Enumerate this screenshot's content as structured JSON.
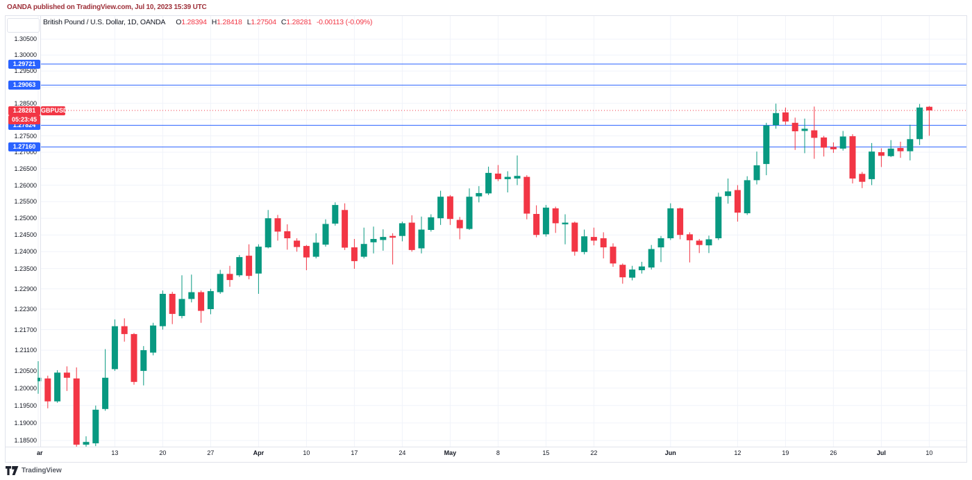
{
  "banner": {
    "text": "OANDA published on TradingView.com, Jul 10, 2023 15:39 UTC"
  },
  "legend": {
    "symbol_title": "British Pound / U.S. Dollar, 1D, OANDA",
    "ohlc": [
      {
        "label": "O",
        "value": "1.28394"
      },
      {
        "label": "H",
        "value": "1.28418"
      },
      {
        "label": "L",
        "value": "1.27504"
      },
      {
        "label": "C",
        "value": "1.28281"
      }
    ],
    "change": "-0.00113 (-0.09%)"
  },
  "footer": {
    "brand": "TradingView"
  },
  "colors": {
    "up": "#089981",
    "down": "#f23645",
    "level_blue": "#2962ff",
    "accent_red": "#f23645",
    "banner_red": "#9e3039",
    "text": "#131722",
    "grid": "#f0f3fa",
    "border": "#e0e3eb"
  },
  "chart_data": {
    "type": "candlestick",
    "symbol": "GBPUSD",
    "title": "British Pound / U.S. Dollar, 1D, OANDA",
    "timeframe": "1D",
    "y_axis": {
      "scale": "log",
      "ylim": [
        1.183,
        1.305
      ],
      "ticks": [
        "1.30500",
        "1.30000",
        "1.29500",
        "1.28500",
        "1.27500",
        "1.27000",
        "1.26500",
        "1.26000",
        "1.25500",
        "1.25000",
        "1.24500",
        "1.24000",
        "1.23500",
        "1.22900",
        "1.22300",
        "1.21700",
        "1.21100",
        "1.20500",
        "1.20000",
        "1.19500",
        "1.19000",
        "1.18500"
      ],
      "grid_only": [
        "1.29000",
        "1.28000"
      ]
    },
    "x_axis": {
      "labels": [
        {
          "text": "ar",
          "index": 0,
          "month": true
        },
        {
          "text": "13",
          "index": 8
        },
        {
          "text": "20",
          "index": 13
        },
        {
          "text": "27",
          "index": 18
        },
        {
          "text": "Apr",
          "index": 23,
          "month": true
        },
        {
          "text": "10",
          "index": 28
        },
        {
          "text": "17",
          "index": 33
        },
        {
          "text": "24",
          "index": 38
        },
        {
          "text": "May",
          "index": 43,
          "month": true
        },
        {
          "text": "8",
          "index": 48
        },
        {
          "text": "15",
          "index": 53
        },
        {
          "text": "22",
          "index": 58
        },
        {
          "text": "Jun",
          "index": 66,
          "month": true
        },
        {
          "text": "12",
          "index": 73
        },
        {
          "text": "19",
          "index": 78
        },
        {
          "text": "26",
          "index": 83
        },
        {
          "text": "Jul",
          "index": 88,
          "month": true
        },
        {
          "text": "10",
          "index": 93
        }
      ]
    },
    "levels": [
      {
        "price": 1.29721,
        "label": "1.29721"
      },
      {
        "price": 1.29063,
        "label": "1.29063"
      },
      {
        "price": 1.27824,
        "label": "1.27824"
      },
      {
        "price": 1.2716,
        "label": "1.27160"
      }
    ],
    "last": {
      "price": 1.28281,
      "label": "1.28281",
      "tag": "GBPUSD",
      "countdown": "05:23:45"
    },
    "dates": [
      "Mar 1",
      "Mar 2",
      "Mar 3",
      "Mar 6",
      "Mar 7",
      "Mar 8",
      "Mar 9",
      "Mar 10",
      "Mar 13",
      "Mar 14",
      "Mar 15",
      "Mar 16",
      "Mar 17",
      "Mar 20",
      "Mar 21",
      "Mar 22",
      "Mar 23",
      "Mar 24",
      "Mar 27",
      "Mar 28",
      "Mar 29",
      "Mar 30",
      "Mar 31",
      "Apr 3",
      "Apr 4",
      "Apr 5",
      "Apr 6",
      "Apr 7",
      "Apr 10",
      "Apr 11",
      "Apr 12",
      "Apr 13",
      "Apr 14",
      "Apr 17",
      "Apr 18",
      "Apr 19",
      "Apr 20",
      "Apr 21",
      "Apr 24",
      "Apr 25",
      "Apr 26",
      "Apr 27",
      "Apr 28",
      "May 1",
      "May 2",
      "May 3",
      "May 4",
      "May 5",
      "May 8",
      "May 9",
      "May 10",
      "May 11",
      "May 12",
      "May 15",
      "May 16",
      "May 17",
      "May 18",
      "May 19",
      "May 22",
      "May 23",
      "May 24",
      "May 25",
      "May 26",
      "May 29",
      "May 30",
      "May 31",
      "Jun 1",
      "Jun 2",
      "Jun 5",
      "Jun 6",
      "Jun 7",
      "Jun 8",
      "Jun 9",
      "Jun 12",
      "Jun 13",
      "Jun 14",
      "Jun 15",
      "Jun 16",
      "Jun 19",
      "Jun 20",
      "Jun 21",
      "Jun 22",
      "Jun 23",
      "Jun 26",
      "Jun 27",
      "Jun 28",
      "Jun 29",
      "Jun 30",
      "Jul 3",
      "Jul 4",
      "Jul 5",
      "Jul 6",
      "Jul 7",
      "Jul 10"
    ],
    "ohlc": [
      [
        1.202,
        1.2078,
        1.1984,
        1.203
      ],
      [
        1.2028,
        1.2036,
        1.1942,
        1.1962
      ],
      [
        1.1962,
        1.2052,
        1.1958,
        1.2045
      ],
      [
        1.2045,
        1.2063,
        1.1992,
        1.203
      ],
      [
        1.2028,
        1.206,
        1.183,
        1.1838
      ],
      [
        1.1838,
        1.1862,
        1.1832,
        1.1846
      ],
      [
        1.1842,
        1.195,
        1.1834,
        1.1938
      ],
      [
        1.194,
        1.2113,
        1.1935,
        1.203
      ],
      [
        1.2055,
        1.22,
        1.205,
        1.218
      ],
      [
        1.218,
        1.2203,
        1.2135,
        1.2157
      ],
      [
        1.2157,
        1.216,
        1.201,
        1.2018
      ],
      [
        1.205,
        1.2122,
        1.2008,
        1.211
      ],
      [
        1.2103,
        1.219,
        1.2095,
        1.2182
      ],
      [
        1.218,
        1.2285,
        1.217,
        1.2275
      ],
      [
        1.2275,
        1.2281,
        1.2186,
        1.2216
      ],
      [
        1.221,
        1.233,
        1.2203,
        1.226
      ],
      [
        1.226,
        1.2332,
        1.225,
        1.228
      ],
      [
        1.228,
        1.2285,
        1.219,
        1.2225
      ],
      [
        1.223,
        1.229,
        1.2215,
        1.2283
      ],
      [
        1.228,
        1.2346,
        1.2275,
        1.2334
      ],
      [
        1.2334,
        1.2358,
        1.2296,
        1.2316
      ],
      [
        1.233,
        1.239,
        1.2325,
        1.2384
      ],
      [
        1.2388,
        1.2422,
        1.2318,
        1.2328
      ],
      [
        1.2335,
        1.2422,
        1.2275,
        1.2415
      ],
      [
        1.2413,
        1.2525,
        1.241,
        1.25
      ],
      [
        1.25,
        1.251,
        1.2433,
        1.246
      ],
      [
        1.2461,
        1.2482,
        1.2406,
        1.244
      ],
      [
        1.2433,
        1.244,
        1.24,
        1.2414
      ],
      [
        1.2417,
        1.242,
        1.2345,
        1.2383
      ],
      [
        1.2385,
        1.2455,
        1.238,
        1.2427
      ],
      [
        1.2421,
        1.2497,
        1.2415,
        1.2483
      ],
      [
        1.2484,
        1.2548,
        1.2478,
        1.254
      ],
      [
        1.2525,
        1.2545,
        1.2405,
        1.2412
      ],
      [
        1.2413,
        1.2438,
        1.2349,
        1.2372
      ],
      [
        1.2385,
        1.2472,
        1.238,
        1.2423
      ],
      [
        1.2428,
        1.2475,
        1.2395,
        1.2438
      ],
      [
        1.2435,
        1.2467,
        1.2403,
        1.2444
      ],
      [
        1.2447,
        1.2455,
        1.2362,
        1.2442
      ],
      [
        1.2447,
        1.249,
        1.2431,
        1.2485
      ],
      [
        1.2487,
        1.2509,
        1.24,
        1.2405
      ],
      [
        1.241,
        1.2505,
        1.2395,
        1.2466
      ],
      [
        1.2465,
        1.2512,
        1.246,
        1.2503
      ],
      [
        1.25,
        1.2583,
        1.248,
        1.2565
      ],
      [
        1.2566,
        1.257,
        1.248,
        1.2498
      ],
      [
        1.2495,
        1.2504,
        1.2437,
        1.247
      ],
      [
        1.2468,
        1.259,
        1.2465,
        1.2565
      ],
      [
        1.2566,
        1.2597,
        1.2548,
        1.2576
      ],
      [
        1.2575,
        1.2656,
        1.257,
        1.2637
      ],
      [
        1.2635,
        1.2661,
        1.2612,
        1.2618
      ],
      [
        1.2618,
        1.2642,
        1.2578,
        1.2625
      ],
      [
        1.262,
        1.269,
        1.26,
        1.2628
      ],
      [
        1.2625,
        1.263,
        1.2497,
        1.2514
      ],
      [
        1.2513,
        1.2539,
        1.2443,
        1.245
      ],
      [
        1.2452,
        1.254,
        1.2445,
        1.2532
      ],
      [
        1.253,
        1.2535,
        1.2456,
        1.2485
      ],
      [
        1.2482,
        1.2512,
        1.2422,
        1.2487
      ],
      [
        1.2487,
        1.249,
        1.2388,
        1.24
      ],
      [
        1.2399,
        1.2466,
        1.2392,
        1.2446
      ],
      [
        1.2444,
        1.2472,
        1.2419,
        1.2433
      ],
      [
        1.244,
        1.2458,
        1.238,
        1.2413
      ],
      [
        1.2415,
        1.2425,
        1.2355,
        1.2365
      ],
      [
        1.2361,
        1.2365,
        1.2305,
        1.2324
      ],
      [
        1.2323,
        1.2358,
        1.2315,
        1.2347
      ],
      [
        1.2345,
        1.237,
        1.2335,
        1.2356
      ],
      [
        1.2353,
        1.242,
        1.2347,
        1.2408
      ],
      [
        1.2413,
        1.2447,
        1.2369,
        1.244
      ],
      [
        1.244,
        1.2545,
        1.2435,
        1.253
      ],
      [
        1.253,
        1.2532,
        1.2437,
        1.245
      ],
      [
        1.2452,
        1.2458,
        1.2368,
        1.2434
      ],
      [
        1.2433,
        1.2438,
        1.2396,
        1.242
      ],
      [
        1.2419,
        1.2448,
        1.2396,
        1.2437
      ],
      [
        1.244,
        1.2577,
        1.2435,
        1.2565
      ],
      [
        1.2567,
        1.262,
        1.2544,
        1.2581
      ],
      [
        1.2585,
        1.26,
        1.249,
        1.2517
      ],
      [
        1.2515,
        1.2627,
        1.251,
        1.2615
      ],
      [
        1.2615,
        1.2702,
        1.2602,
        1.266
      ],
      [
        1.2664,
        1.279,
        1.263,
        1.2782
      ],
      [
        1.2783,
        1.2849,
        1.2772,
        1.282
      ],
      [
        1.2822,
        1.2837,
        1.2784,
        1.2794
      ],
      [
        1.279,
        1.2806,
        1.2707,
        1.2764
      ],
      [
        1.2765,
        1.2803,
        1.2697,
        1.2772
      ],
      [
        1.2767,
        1.284,
        1.268,
        1.2744
      ],
      [
        1.2745,
        1.275,
        1.2687,
        1.2714
      ],
      [
        1.2716,
        1.273,
        1.2698,
        1.2709
      ],
      [
        1.2711,
        1.2765,
        1.2705,
        1.2748
      ],
      [
        1.2749,
        1.2755,
        1.2605,
        1.262
      ],
      [
        1.2634,
        1.264,
        1.2591,
        1.261
      ],
      [
        1.2618,
        1.2728,
        1.26,
        1.2702
      ],
      [
        1.27,
        1.2712,
        1.2655,
        1.2689
      ],
      [
        1.2688,
        1.2737,
        1.2685,
        1.2711
      ],
      [
        1.2713,
        1.2732,
        1.2683,
        1.2703
      ],
      [
        1.2703,
        1.2784,
        1.2675,
        1.274
      ],
      [
        1.274,
        1.2848,
        1.2722,
        1.2837
      ],
      [
        1.28394,
        1.28418,
        1.27504,
        1.28281
      ]
    ]
  }
}
